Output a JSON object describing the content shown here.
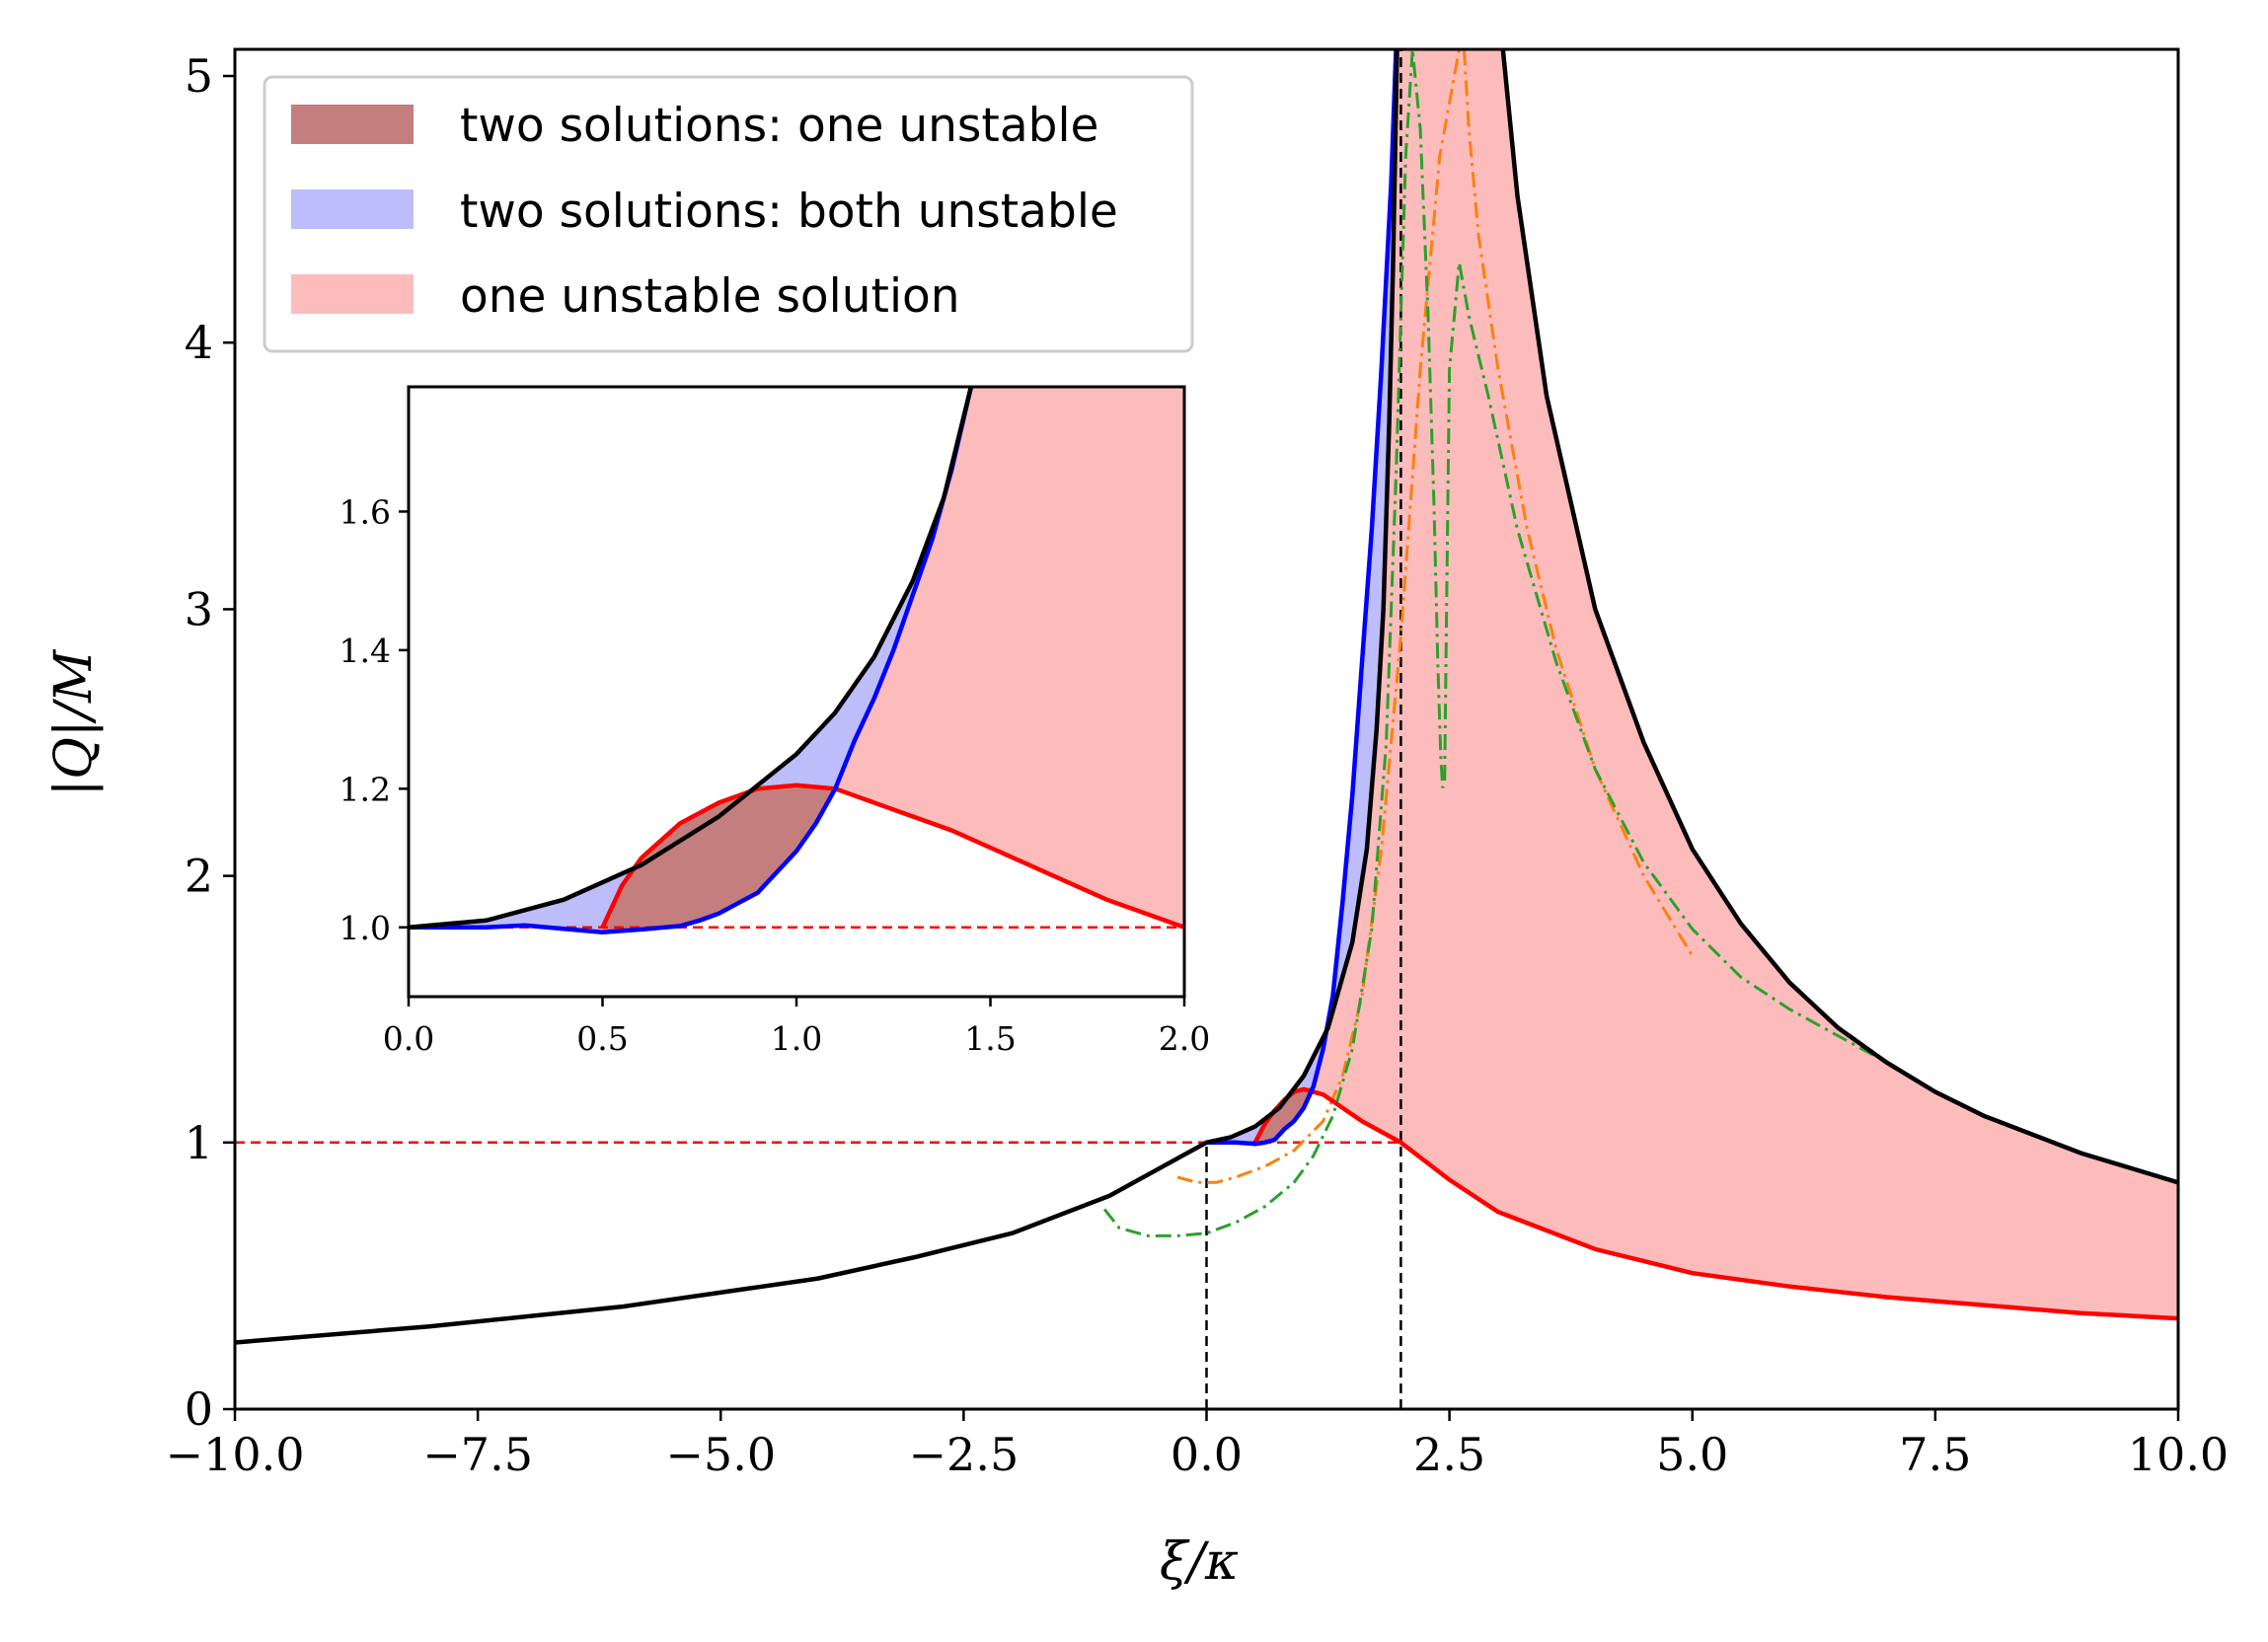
{
  "chart_data": {
    "type": "line",
    "xlabel": "ξ/κ",
    "ylabel": "|Q|/M",
    "xlim": [
      -10,
      10
    ],
    "ylim": [
      0,
      5.1
    ],
    "xticks": [
      "−10.0",
      "−7.5",
      "−5.0",
      "−2.5",
      "0.0",
      "2.5",
      "5.0",
      "7.5",
      "10.0"
    ],
    "xtick_values": [
      -10,
      -7.5,
      -5,
      -2.5,
      0,
      2.5,
      5,
      7.5,
      10
    ],
    "yticks": [
      "0",
      "1",
      "2",
      "3",
      "4",
      "5"
    ],
    "ytick_values": [
      0,
      1,
      2,
      3,
      4,
      5
    ],
    "grid": false,
    "legend_position": "top-left",
    "legend": [
      {
        "label": "two solutions: one unstable",
        "color": "#c47e7e"
      },
      {
        "label": "two solutions: both unstable",
        "color": "#bdbdfb"
      },
      {
        "label": "one unstable solution",
        "color": "#fdbcbc"
      }
    ],
    "colors": {
      "upper_bound": "#000000",
      "lower_bound": "#ff0000",
      "blue_curve": "#0000ff",
      "orange_dashdot": "#ff7f0e",
      "green_dashdot": "#2ca02c",
      "fill_both_unstable": "#bdbdfb",
      "fill_one_of_two": "#c47e7e",
      "fill_one_unstable": "#fdbcbc"
    },
    "reference_lines": {
      "horizontal_red_dashed_y": 1.0,
      "vertical_black_dashed_x": [
        0,
        2
      ]
    },
    "upper_bound_curve": {
      "x": [
        -10,
        -8,
        -6,
        -4,
        -3,
        -2,
        -1,
        -0.5,
        0,
        0.25,
        0.5,
        0.75,
        1.0,
        1.25,
        1.5,
        1.65,
        1.75,
        1.82,
        1.88,
        1.92,
        1.96,
        1.98
      ],
      "y": [
        0.25,
        0.31,
        0.385,
        0.49,
        0.57,
        0.66,
        0.8,
        0.9,
        1.0,
        1.02,
        1.06,
        1.13,
        1.25,
        1.43,
        1.75,
        2.1,
        2.55,
        3.0,
        3.7,
        4.3,
        5.1,
        5.1
      ]
    },
    "upper_bound_right_branch": {
      "x": [
        3.05,
        3.2,
        3.5,
        4.0,
        4.5,
        5.0,
        5.5,
        6.0,
        6.5,
        7.0,
        7.5,
        8.0,
        9.0,
        10.0
      ],
      "y": [
        5.1,
        4.55,
        3.8,
        3.0,
        2.5,
        2.1,
        1.82,
        1.6,
        1.43,
        1.3,
        1.19,
        1.1,
        0.96,
        0.85
      ]
    },
    "lower_bound_curve": {
      "x": [
        0.5,
        0.6,
        0.7,
        0.8,
        0.9,
        1.0,
        1.2,
        1.4,
        1.6,
        1.8,
        2.0,
        2.5,
        3.0,
        4.0,
        5.0,
        6.0,
        7.0,
        8.0,
        9.0,
        10.0
      ],
      "y": [
        1.0,
        1.07,
        1.12,
        1.16,
        1.19,
        1.2,
        1.18,
        1.13,
        1.08,
        1.04,
        1.0,
        0.86,
        0.74,
        0.6,
        0.51,
        0.46,
        0.42,
        0.39,
        0.36,
        0.34
      ]
    },
    "blue_curve": {
      "x": [
        0,
        0.3,
        0.5,
        0.6,
        0.7,
        0.8,
        0.9,
        1.0,
        1.1,
        1.2,
        1.3,
        1.4,
        1.5,
        1.6,
        1.7,
        1.8,
        1.9,
        1.95
      ],
      "y": [
        1.0,
        1.0,
        0.995,
        1.0,
        1.01,
        1.05,
        1.08,
        1.13,
        1.21,
        1.35,
        1.55,
        1.9,
        2.3,
        2.8,
        3.3,
        3.9,
        4.6,
        5.1
      ]
    },
    "orange_dashdot": {
      "x": [
        -0.3,
        -0.1,
        0.1,
        0.3,
        0.6,
        0.9,
        1.2,
        1.4,
        1.6,
        1.8,
        2.0,
        2.2,
        2.4,
        2.6,
        2.65,
        2.7,
        2.8,
        3.0,
        3.3,
        3.6,
        4.0,
        4.5,
        5.0
      ],
      "y": [
        0.87,
        0.85,
        0.85,
        0.87,
        0.91,
        0.97,
        1.08,
        1.25,
        1.55,
        2.1,
        2.9,
        3.9,
        4.7,
        5.1,
        5.1,
        4.8,
        4.4,
        3.9,
        3.3,
        2.85,
        2.4,
        2.0,
        1.7
      ]
    },
    "green_dashdot": {
      "x": [
        -1.05,
        -0.9,
        -0.6,
        -0.3,
        0,
        0.3,
        0.6,
        0.9,
        1.1,
        1.3,
        1.5,
        1.7,
        1.85,
        1.95,
        2.05,
        2.12,
        2.2,
        2.28,
        2.34,
        2.38,
        2.41,
        2.43,
        2.45,
        2.47,
        2.5,
        2.6,
        2.7,
        2.9,
        3.2,
        3.6,
        4.0,
        4.5,
        5.0,
        5.5,
        6.0,
        6.5,
        6.9
      ],
      "y": [
        0.75,
        0.68,
        0.65,
        0.65,
        0.66,
        0.7,
        0.76,
        0.85,
        0.95,
        1.1,
        1.35,
        1.8,
        2.5,
        3.5,
        4.7,
        5.1,
        4.8,
        4.1,
        3.4,
        2.8,
        2.45,
        2.33,
        2.35,
        3.0,
        3.9,
        4.3,
        4.1,
        3.8,
        3.3,
        2.8,
        2.4,
        2.05,
        1.8,
        1.62,
        1.5,
        1.4,
        1.32
      ]
    },
    "inset": {
      "xlim": [
        0,
        2.0
      ],
      "ylim": [
        0.9,
        1.78
      ],
      "xticks": [
        "0.0",
        "0.5",
        "1.0",
        "1.5",
        "2.0"
      ],
      "xtick_values": [
        0,
        0.5,
        1.0,
        1.5,
        2.0
      ],
      "yticks": [
        "1.0",
        "1.2",
        "1.4",
        "1.6"
      ],
      "ytick_values": [
        1.0,
        1.2,
        1.4,
        1.6
      ],
      "upper_bound_curve": {
        "x": [
          0,
          0.2,
          0.4,
          0.6,
          0.8,
          1.0,
          1.1,
          1.2,
          1.3,
          1.38,
          1.45
        ],
        "y": [
          1.0,
          1.01,
          1.04,
          1.09,
          1.16,
          1.25,
          1.31,
          1.39,
          1.5,
          1.62,
          1.78
        ]
      },
      "lower_bound_curve": {
        "x": [
          0.5,
          0.55,
          0.6,
          0.7,
          0.8,
          0.9,
          1.0,
          1.1,
          1.2,
          1.4,
          1.6,
          1.8,
          2.0
        ],
        "y": [
          1.0,
          1.06,
          1.1,
          1.15,
          1.18,
          1.2,
          1.205,
          1.2,
          1.18,
          1.14,
          1.09,
          1.04,
          1.0
        ]
      },
      "blue_curve": {
        "x": [
          0,
          0.2,
          0.3,
          0.4,
          0.5,
          0.55,
          0.6,
          0.7,
          0.75,
          0.8,
          0.85,
          0.9,
          0.95,
          1.0,
          1.05,
          1.1,
          1.15,
          1.2,
          1.25,
          1.3,
          1.35,
          1.4,
          1.45
        ],
        "y": [
          1.0,
          1.0,
          1.003,
          0.998,
          0.993,
          0.995,
          0.997,
          1.002,
          1.01,
          1.02,
          1.035,
          1.05,
          1.08,
          1.11,
          1.15,
          1.2,
          1.27,
          1.33,
          1.4,
          1.48,
          1.56,
          1.66,
          1.78
        ]
      }
    }
  }
}
